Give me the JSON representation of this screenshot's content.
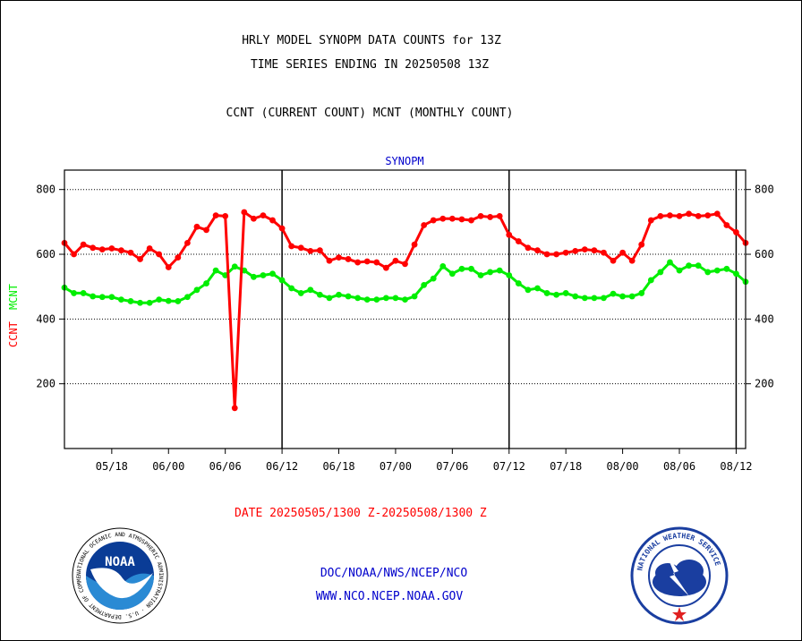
{
  "title_line1": "HRLY MODEL SYNOPM DATA COUNTS for 13Z",
  "title_line2": "TIME SERIES ENDING IN 20250508 13Z",
  "subtitle": "CCNT (CURRENT COUNT) MCNT (MONTHLY COUNT)",
  "footer_links": [
    "DOC/NOAA/NWS/NCEP/NCO",
    "WWW.NCO.NCEP.NOAA.GOV"
  ],
  "logos": {
    "noaa": {
      "icon": "noaa-logo",
      "text": "NOAA",
      "ring_text": "NATIONAL OCEANIC AND ATMOSPHERIC ADMINISTRATION · U.S. DEPARTMENT OF COMMERCE"
    },
    "nws": {
      "icon": "nws-logo",
      "ring_text": "NATIONAL WEATHER SERVICE"
    }
  },
  "colors": {
    "ccnt": "#ff0000",
    "mcnt": "#00ee00",
    "link": "#0000cc",
    "grid": "#000000"
  },
  "chart_data": {
    "type": "line",
    "title": "SYNOPM",
    "xlabel": "DATE 20250505/1300 Z-20250508/1300 Z",
    "ylabel_ccnt": "CCNT",
    "ylabel_mcnt": "MCNT",
    "ylim": [
      0,
      860
    ],
    "yticks": [
      200,
      400,
      600,
      800
    ],
    "x_tick_labels": [
      "05/18",
      "06/00",
      "06/06",
      "06/12",
      "06/18",
      "07/00",
      "07/06",
      "07/12",
      "07/18",
      "08/00",
      "08/06",
      "08/12"
    ],
    "x_tick_positions": [
      5,
      11,
      17,
      23,
      29,
      35,
      41,
      47,
      53,
      59,
      65,
      71
    ],
    "x_range": [
      0,
      72
    ],
    "day_boundaries": [
      23,
      47,
      71
    ],
    "grid": "horizontal-dotted",
    "series": [
      {
        "name": "CCNT",
        "color": "#ff0000",
        "values": [
          635,
          600,
          630,
          620,
          615,
          618,
          612,
          605,
          585,
          618,
          600,
          560,
          590,
          635,
          685,
          675,
          720,
          718,
          125,
          730,
          710,
          720,
          705,
          680,
          625,
          620,
          610,
          612,
          580,
          590,
          585,
          575,
          578,
          575,
          558,
          580,
          570,
          630,
          690,
          705,
          710,
          710,
          708,
          705,
          718,
          715,
          718,
          660,
          640,
          620,
          612,
          600,
          600,
          605,
          610,
          615,
          612,
          605,
          580,
          605,
          580,
          630,
          705,
          718,
          720,
          718,
          725,
          718,
          720,
          725,
          690,
          668,
          635
        ]
      },
      {
        "name": "MCNT",
        "color": "#00ee00",
        "values": [
          497,
          480,
          480,
          470,
          468,
          468,
          460,
          455,
          450,
          450,
          460,
          456,
          455,
          468,
          490,
          510,
          550,
          535,
          562,
          550,
          530,
          535,
          540,
          520,
          495,
          480,
          490,
          475,
          465,
          475,
          470,
          465,
          460,
          460,
          465,
          465,
          460,
          470,
          505,
          525,
          563,
          540,
          555,
          555,
          535,
          545,
          550,
          535,
          510,
          490,
          495,
          480,
          475,
          480,
          470,
          465,
          465,
          465,
          478,
          470,
          470,
          480,
          520,
          545,
          575,
          550,
          565,
          565,
          545,
          550,
          555,
          540,
          515
        ]
      }
    ]
  }
}
